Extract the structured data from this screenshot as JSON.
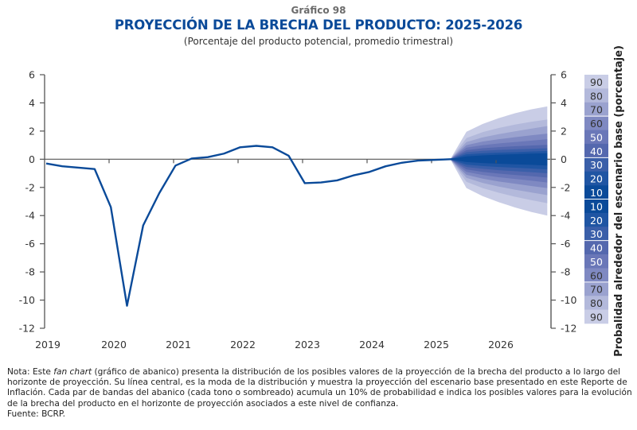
{
  "header": {
    "number": "Gráfico 98",
    "title": "PROYECCIÓN DE LA BRECHA DEL PRODUCTO: 2025-2026",
    "subtitle": "(Porcentaje del producto potencial, promedio trimestral)"
  },
  "colors": {
    "line": "#0a4a99",
    "axis": "#555555",
    "zero_line": "#555555",
    "title": "#0a4a99",
    "fan_bands": [
      "#0a4a99",
      "#1f55a3",
      "#3a5fa9",
      "#5468ae",
      "#6a77b8",
      "#7f89c2",
      "#9aa2cf",
      "#b3b9db",
      "#c9cde6"
    ]
  },
  "chart_data": {
    "type": "line",
    "subtype": "fan_chart",
    "title": "PROYECCIÓN DE LA BRECHA DEL PRODUCTO: 2025-2026",
    "subtitle": "(Porcentaje del producto potencial, promedio trimestral)",
    "xlabel": "",
    "ylabel_left": "",
    "ylabel_right": "Probalidad alrededor del escenario base (porcentaje)",
    "ylim": [
      -12,
      6
    ],
    "yticks": [
      6,
      4,
      2,
      0,
      -2,
      -4,
      -6,
      -8,
      -10,
      -12
    ],
    "ytick_labels": [
      "6",
      "4",
      "2",
      "0",
      "-2",
      "-4",
      "-6",
      "-8",
      "-10",
      "-12"
    ],
    "x_categories": [
      "2019",
      "2020",
      "2021",
      "2022",
      "2023",
      "2024",
      "2025",
      "2026"
    ],
    "x_quarters_per_year": 4,
    "grid": false,
    "zero_line": true,
    "historical": {
      "name": "Brecha del producto",
      "start": "2019Q1",
      "values": [
        -0.3,
        -0.5,
        -0.6,
        -0.7,
        -3.4,
        -10.4,
        -4.7,
        -2.4,
        -0.45,
        0.05,
        0.15,
        0.4,
        0.85,
        0.95,
        0.85,
        0.25,
        -1.7,
        -1.65,
        -1.5,
        -1.15,
        -0.9,
        -0.5,
        -0.25,
        -0.1,
        -0.05,
        0.0
      ]
    },
    "projection": {
      "start": "2025Q3",
      "central": [
        0.0,
        0.0,
        0.0,
        0.0,
        0.0,
        0.0,
        0.0
      ],
      "bands": [
        {
          "prob": 10,
          "upper": [
            0.0,
            0.2,
            0.27,
            0.32,
            0.36,
            0.4,
            0.42
          ],
          "lower": [
            0.0,
            -0.2,
            -0.27,
            -0.32,
            -0.36,
            -0.4,
            -0.45
          ]
        },
        {
          "prob": 20,
          "upper": [
            0.0,
            0.35,
            0.42,
            0.47,
            0.5,
            0.55,
            0.58
          ],
          "lower": [
            0.0,
            -0.38,
            -0.48,
            -0.55,
            -0.6,
            -0.66,
            -0.72
          ]
        },
        {
          "prob": 30,
          "upper": [
            0.0,
            0.5,
            0.6,
            0.66,
            0.7,
            0.74,
            0.78
          ],
          "lower": [
            0.0,
            -0.55,
            -0.68,
            -0.78,
            -0.85,
            -0.92,
            -1.0
          ]
        },
        {
          "prob": 40,
          "upper": [
            0.0,
            0.65,
            0.78,
            0.86,
            0.92,
            0.97,
            1.02
          ],
          "lower": [
            0.0,
            -0.72,
            -0.9,
            -1.02,
            -1.12,
            -1.2,
            -1.3
          ]
        },
        {
          "prob": 50,
          "upper": [
            0.0,
            0.82,
            1.0,
            1.12,
            1.22,
            1.32,
            1.42
          ],
          "lower": [
            0.0,
            -0.9,
            -1.12,
            -1.28,
            -1.4,
            -1.52,
            -1.65
          ]
        },
        {
          "prob": 60,
          "upper": [
            0.0,
            1.0,
            1.25,
            1.42,
            1.56,
            1.7,
            1.82
          ],
          "lower": [
            0.0,
            -1.1,
            -1.38,
            -1.58,
            -1.74,
            -1.9,
            -2.05
          ]
        },
        {
          "prob": 70,
          "upper": [
            0.0,
            1.22,
            1.55,
            1.78,
            1.98,
            2.17,
            2.35
          ],
          "lower": [
            0.0,
            -1.32,
            -1.68,
            -1.94,
            -2.16,
            -2.36,
            -2.55
          ]
        },
        {
          "prob": 80,
          "upper": [
            0.0,
            1.5,
            1.92,
            2.22,
            2.46,
            2.66,
            2.82
          ],
          "lower": [
            0.0,
            -1.6,
            -2.05,
            -2.38,
            -2.66,
            -2.9,
            -3.12
          ]
        },
        {
          "prob": 90,
          "upper": [
            0.0,
            1.95,
            2.5,
            2.92,
            3.26,
            3.54,
            3.75
          ],
          "lower": [
            0.0,
            -2.05,
            -2.62,
            -3.05,
            -3.42,
            -3.74,
            -4.0
          ]
        }
      ]
    },
    "legend": {
      "placement": "right",
      "labels": [
        "90",
        "80",
        "70",
        "60",
        "50",
        "40",
        "30",
        "20",
        "10",
        "10",
        "20",
        "30",
        "40",
        "50",
        "60",
        "70",
        "80",
        "90"
      ]
    }
  },
  "note": {
    "prefix": "Nota: Este ",
    "italic": "fan chart",
    "text": " (gráfico de abanico) presenta la distribución de los posibles valores de la proyección de la brecha del producto a lo largo del horizonte de proyección. Su línea central, es la moda de la distribución y muestra la proyección del escenario base presentado en este Reporte de Inflación. Cada par de bandas del abanico (cada tono o sombreado) acumula un 10% de probabilidad e indica los posibles valores para la evolución de la brecha del producto en el horizonte de proyección asociados a este nivel de confianza.",
    "source": "Fuente: BCRP."
  }
}
